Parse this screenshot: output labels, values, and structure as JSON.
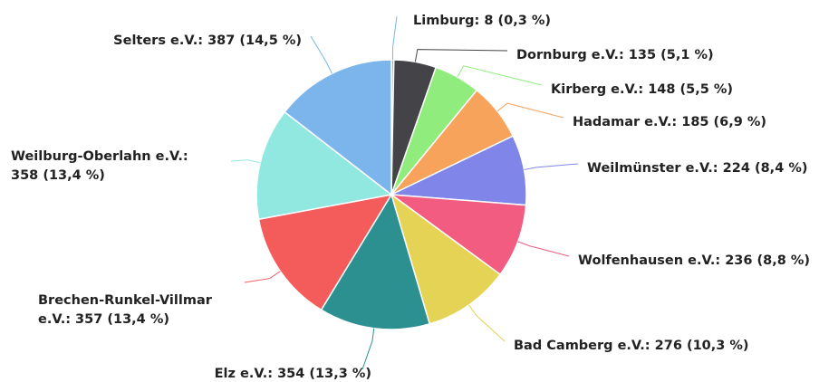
{
  "chart_data": {
    "type": "pie",
    "value_labels": [
      "Limburg: 8 (0,3 %)",
      "Dornburg e.V.: 135 (5,1 %)",
      "Kirberg e.V.: 148 (5,5 %)",
      "Hadamar e.V.: 185 (6,9 %)",
      "Weilmünster e.V.: 224 (8,4 %)",
      "Wolfenhausen e.V.: 236 (8,8 %)",
      "Bad Camberg e.V.: 276 (10,3 %)",
      "Elz e.V.: 354 (13,3 %)",
      "Brechen-Runkel-Villmar\ne.V.: 357 (13,4 %)",
      "Weilburg-Oberlahn e.V.:\n358 (13,4 %)",
      "Selters e.V.: 387 (14,5 %)"
    ],
    "values": [
      8,
      135,
      148,
      185,
      224,
      236,
      276,
      354,
      357,
      358,
      387
    ],
    "colors": [
      "#7cb5ec",
      "#434348",
      "#90ed7d",
      "#f7a35c",
      "#8085e9",
      "#f15c80",
      "#e4d354",
      "#2b908f",
      "#f45b5b",
      "#91e8e1",
      "#7cb5ec"
    ]
  }
}
